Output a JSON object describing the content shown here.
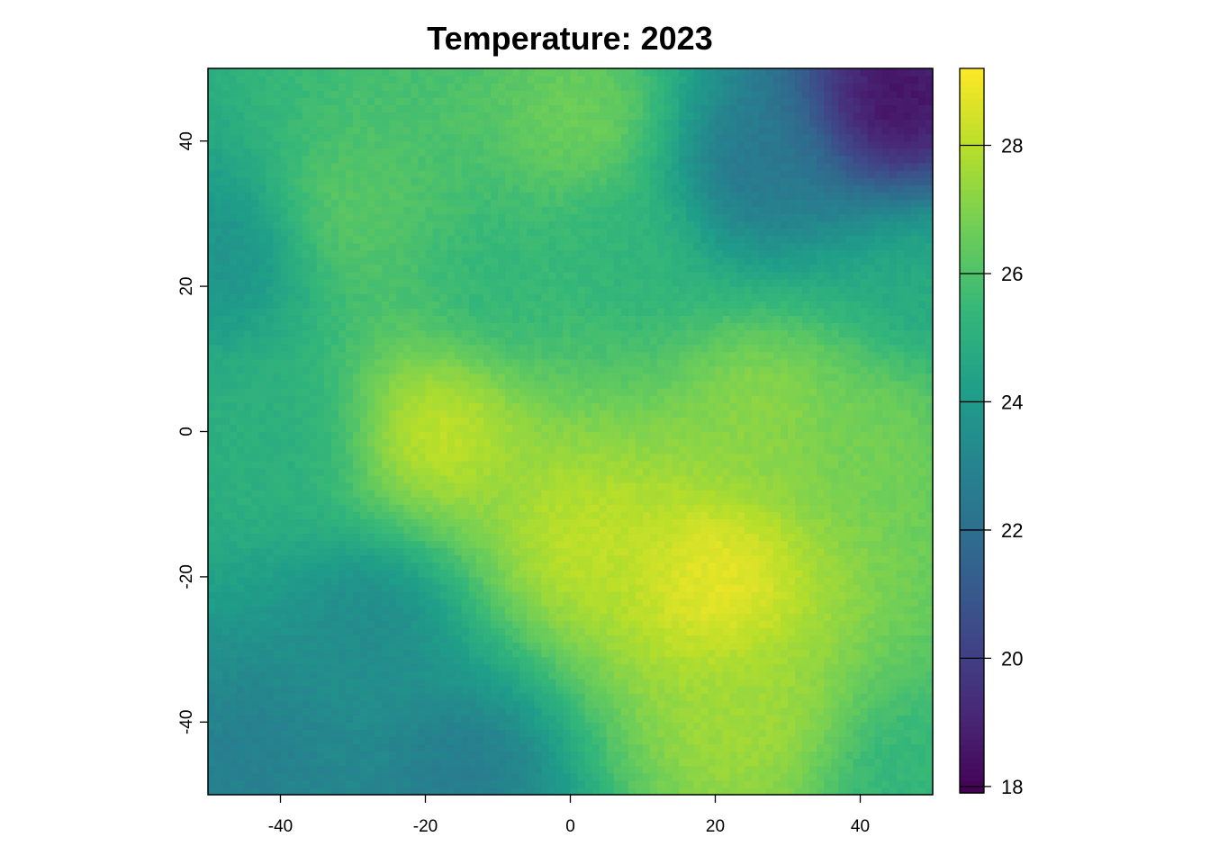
{
  "chart_data": {
    "type": "heatmap",
    "title": "Temperature: 2023",
    "xlabel": "",
    "ylabel": "",
    "xlim": [
      -50,
      49
    ],
    "ylim": [
      -50,
      49
    ],
    "x_ticks": [
      -40,
      -20,
      0,
      20,
      40
    ],
    "y_ticks": [
      -40,
      -20,
      0,
      20,
      40
    ],
    "x_tick_labels": [
      "-40",
      "-20",
      "0",
      "20",
      "40"
    ],
    "y_tick_labels": [
      "-40",
      "-20",
      "0",
      "20",
      "40"
    ],
    "colorbar": {
      "range": [
        17.9,
        29.2
      ],
      "ticks": [
        18,
        20,
        22,
        24,
        26,
        28
      ],
      "tick_labels": [
        "18",
        "20",
        "22",
        "24",
        "26",
        "28"
      ],
      "colormap": [
        "#440154",
        "#482878",
        "#3e4989",
        "#31688e",
        "#26828e",
        "#1f9e89",
        "#35b779",
        "#6ece58",
        "#b5de2b",
        "#fde725"
      ],
      "placement": "right"
    },
    "grid": false,
    "field": {
      "description_points": [
        {
          "x": 20,
          "y": -20,
          "value": 29.0
        },
        {
          "x": -18,
          "y": 0,
          "value": 28.4
        },
        {
          "x": 2,
          "y": -15,
          "value": 28.2
        },
        {
          "x": 25,
          "y": -40,
          "value": 27.6
        },
        {
          "x": 27,
          "y": 3,
          "value": 27.3
        },
        {
          "x": 40,
          "y": 0,
          "value": 26.8
        },
        {
          "x": 2,
          "y": 42,
          "value": 26.8
        },
        {
          "x": -30,
          "y": 30,
          "value": 26.3
        },
        {
          "x": 25,
          "y": 36,
          "value": 22.3
        },
        {
          "x": 45,
          "y": 45,
          "value": 18.2
        },
        {
          "x": -47,
          "y": 24,
          "value": 23.6
        },
        {
          "x": -44,
          "y": -45,
          "value": 22.8
        },
        {
          "x": -15,
          "y": -47,
          "value": 22.6
        },
        {
          "x": -28,
          "y": -27,
          "value": 23.3
        },
        {
          "x": 46,
          "y": -48,
          "value": 25.3
        },
        {
          "x": 48,
          "y": 20,
          "value": 24.8
        },
        {
          "x": -40,
          "y": 0,
          "value": 25.0
        },
        {
          "x": -10,
          "y": 20,
          "value": 25.3
        },
        {
          "x": 8,
          "y": 25,
          "value": 25.3
        }
      ],
      "base_value": 25.3
    }
  }
}
